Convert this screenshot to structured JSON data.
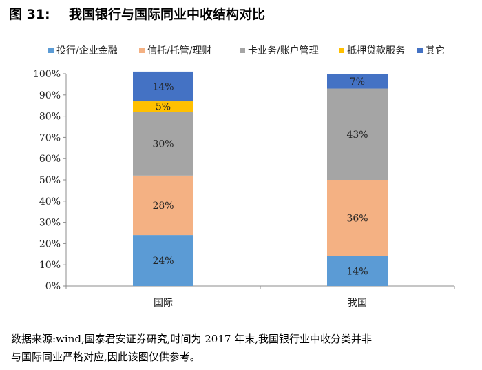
{
  "figure": {
    "label": "图 31:",
    "title": "我国银行与国际同业中收结构对比"
  },
  "source": {
    "line1": "数据来源:wind,国泰君安证券研究,时间为 2017 年末,我国银行业中收分类并非",
    "line2": "与国际同业严格对应,因此该图仅供参考。"
  },
  "chart_data": {
    "type": "bar",
    "stacked": true,
    "categories": [
      "国际",
      "我国"
    ],
    "series": [
      {
        "name": "投行/企业金融",
        "color": "#5b9bd5",
        "values": [
          24,
          14
        ],
        "labels": [
          "24%",
          "14%"
        ]
      },
      {
        "name": "信托/托管/理财",
        "color": "#f4b183",
        "values": [
          28,
          36
        ],
        "labels": [
          "28%",
          "36%"
        ]
      },
      {
        "name": "卡业务/账户管理",
        "color": "#a5a5a5",
        "values": [
          30,
          43
        ],
        "labels": [
          "30%",
          "43%"
        ]
      },
      {
        "name": "抵押贷款服务",
        "color": "#ffc000",
        "values": [
          5,
          0
        ],
        "labels": [
          "5%",
          ""
        ]
      },
      {
        "name": "其它",
        "color": "#4472c4",
        "values": [
          14,
          7
        ],
        "labels": [
          "14%",
          "7%"
        ]
      }
    ],
    "ylim": [
      0,
      100
    ],
    "yticks": [
      "0%",
      "10%",
      "20%",
      "30%",
      "40%",
      "50%",
      "60%",
      "70%",
      "80%",
      "90%",
      "100%"
    ],
    "legend_position": "top",
    "grid": false
  }
}
